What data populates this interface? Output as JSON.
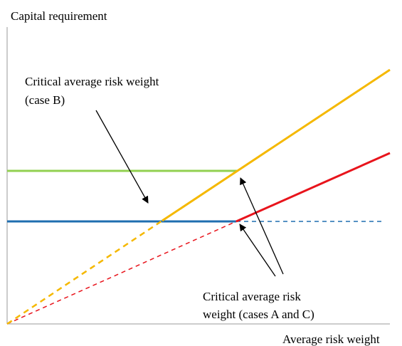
{
  "axes": {
    "y_label": "Capital requirement",
    "x_label": "Average risk weight"
  },
  "annotations": [
    {
      "lines": [
        "Critical average risk weight",
        "(case B)"
      ]
    },
    {
      "lines": [
        "Critical average risk",
        "weight (cases A and C)"
      ]
    }
  ]
}
